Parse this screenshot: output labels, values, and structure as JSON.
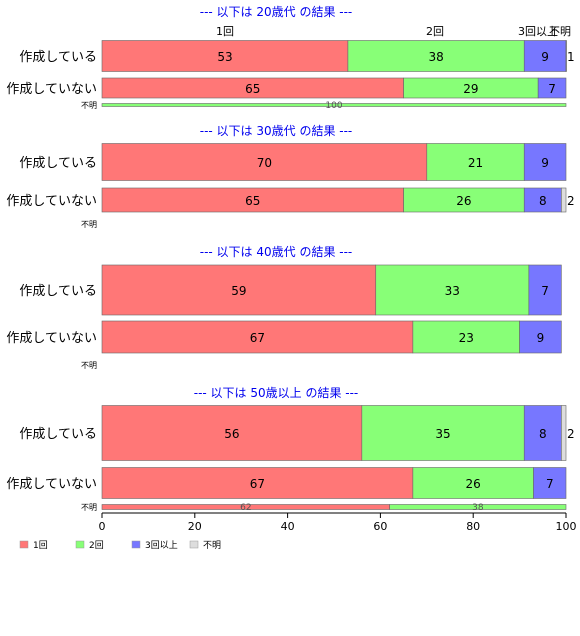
{
  "chart_data": {
    "type": "bar",
    "orientation": "horizontal",
    "stacked": true,
    "xlim": [
      0,
      100
    ],
    "x_ticks": [
      "0",
      "20",
      "40",
      "60",
      "80",
      "100"
    ],
    "category_headers": [
      "1回",
      "2回",
      "3回以上",
      "不明"
    ],
    "legend": {
      "placement": "bottom-left",
      "items": [
        {
          "name": "1回",
          "color": "#ff7777"
        },
        {
          "name": "2回",
          "color": "#88ff77"
        },
        {
          "name": "3回以上",
          "color": "#7777ff"
        },
        {
          "name": "不明",
          "color": "#dddddd"
        }
      ]
    },
    "groups": [
      {
        "title": "--- 以下は 20歳代 の結果 ---",
        "rows": [
          {
            "label": "作成している",
            "values": [
              53,
              38,
              9,
              1
            ]
          },
          {
            "label": "作成していない",
            "values": [
              65,
              29,
              7,
              0
            ]
          },
          {
            "label": "不明",
            "values": [
              0,
              100,
              0,
              0
            ]
          }
        ]
      },
      {
        "title": "--- 以下は 30歳代 の結果 ---",
        "rows": [
          {
            "label": "作成している",
            "values": [
              70,
              21,
              9,
              0
            ]
          },
          {
            "label": "作成していない",
            "values": [
              65,
              26,
              8,
              2
            ]
          },
          {
            "label": "不明",
            "values": [
              0,
              0,
              0,
              0
            ]
          }
        ]
      },
      {
        "title": "--- 以下は 40歳代 の結果 ---",
        "rows": [
          {
            "label": "作成している",
            "values": [
              59,
              33,
              7,
              0
            ]
          },
          {
            "label": "作成していない",
            "values": [
              67,
              23,
              9,
              0
            ]
          },
          {
            "label": "不明",
            "values": [
              0,
              0,
              0,
              0
            ]
          }
        ]
      },
      {
        "title": "--- 以下は 50歳以上 の結果 ---",
        "rows": [
          {
            "label": "作成している",
            "values": [
              56,
              35,
              8,
              2
            ]
          },
          {
            "label": "作成していない",
            "values": [
              67,
              26,
              7,
              0
            ]
          },
          {
            "label": "不明",
            "values": [
              62,
              38,
              0,
              0
            ]
          }
        ]
      }
    ]
  }
}
